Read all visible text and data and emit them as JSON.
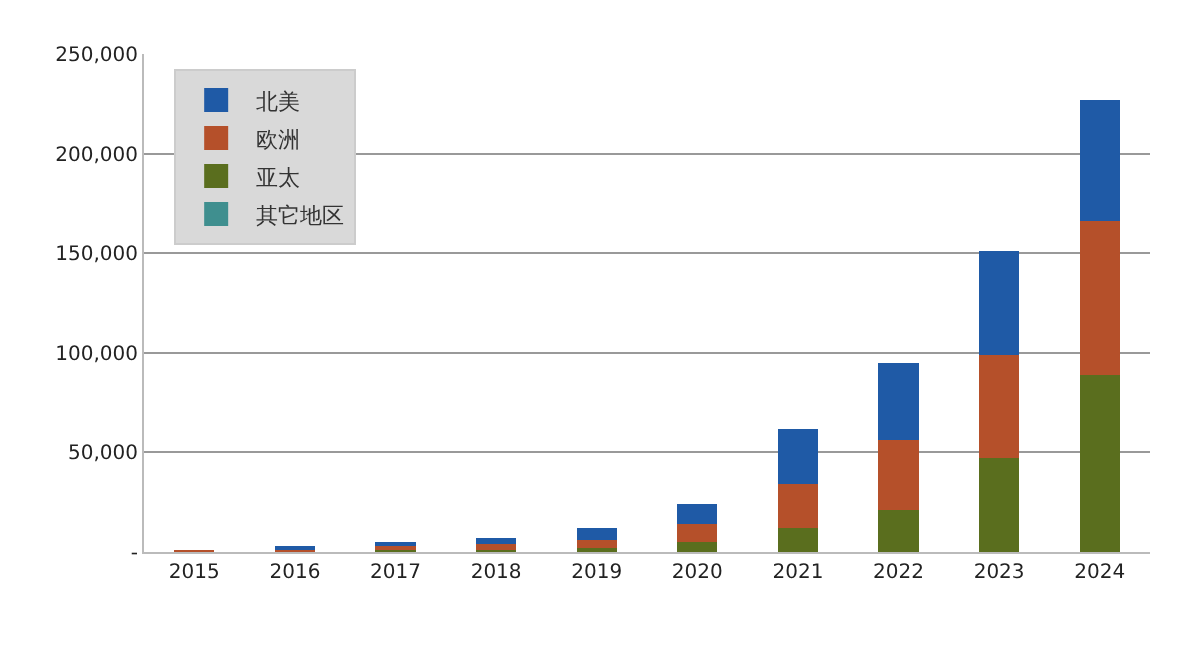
{
  "chart_data": {
    "type": "bar",
    "stacked": true,
    "categories": [
      "2015",
      "2016",
      "2017",
      "2018",
      "2019",
      "2020",
      "2021",
      "2022",
      "2023",
      "2024"
    ],
    "series": [
      {
        "name": "其它地区",
        "color": "#3f8f8f",
        "values": [
          null,
          null,
          null,
          null,
          null,
          null,
          null,
          null,
          null,
          null
        ]
      },
      {
        "name": "亚太",
        "color": "#5a6e1e",
        "values": [
          null,
          null,
          1000,
          1000,
          2000,
          5000,
          12000,
          21000,
          47000,
          89000
        ]
      },
      {
        "name": "欧洲",
        "color": "#b5502a",
        "values": [
          1000,
          2000,
          3000,
          4000,
          4000,
          9000,
          22000,
          35000,
          52000,
          77000
        ]
      },
      {
        "name": "北美",
        "color": "#1f5aa6",
        "values": [
          null,
          1000,
          1000,
          2000,
          6000,
          10000,
          28000,
          39000,
          52000,
          61000
        ]
      }
    ],
    "ylim": [
      0,
      250000
    ],
    "yticks": [
      {
        "value": 0,
        "label": "-"
      },
      {
        "value": 50000,
        "label": "50,000"
      },
      {
        "value": 100000,
        "label": "100,000"
      },
      {
        "value": 150000,
        "label": "150,000"
      },
      {
        "value": 200000,
        "label": "200,000"
      },
      {
        "value": 250000,
        "label": "250,000"
      }
    ],
    "grid": "y",
    "legend": "top left"
  }
}
